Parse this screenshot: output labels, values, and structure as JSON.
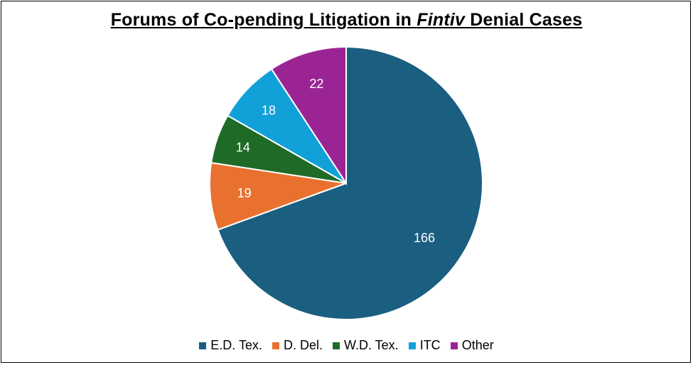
{
  "chart_data": {
    "type": "pie",
    "title_before": "Forums of Co-pending Litigation in ",
    "title_italic": "Fintiv",
    "title_after": " Denial Cases",
    "categories": [
      "E.D. Tex.",
      "D. Del.",
      "W.D. Tex.",
      "ITC",
      "Other"
    ],
    "values": [
      166,
      19,
      14,
      18,
      22
    ],
    "colors": [
      "#1a5e80",
      "#e9712f",
      "#1e6a26",
      "#12a0d8",
      "#9b2494"
    ],
    "data_labels": [
      "166",
      "19",
      "14",
      "18",
      "22"
    ],
    "legend_position": "bottom",
    "start_angle": "12 o'clock",
    "direction": "clockwise"
  }
}
